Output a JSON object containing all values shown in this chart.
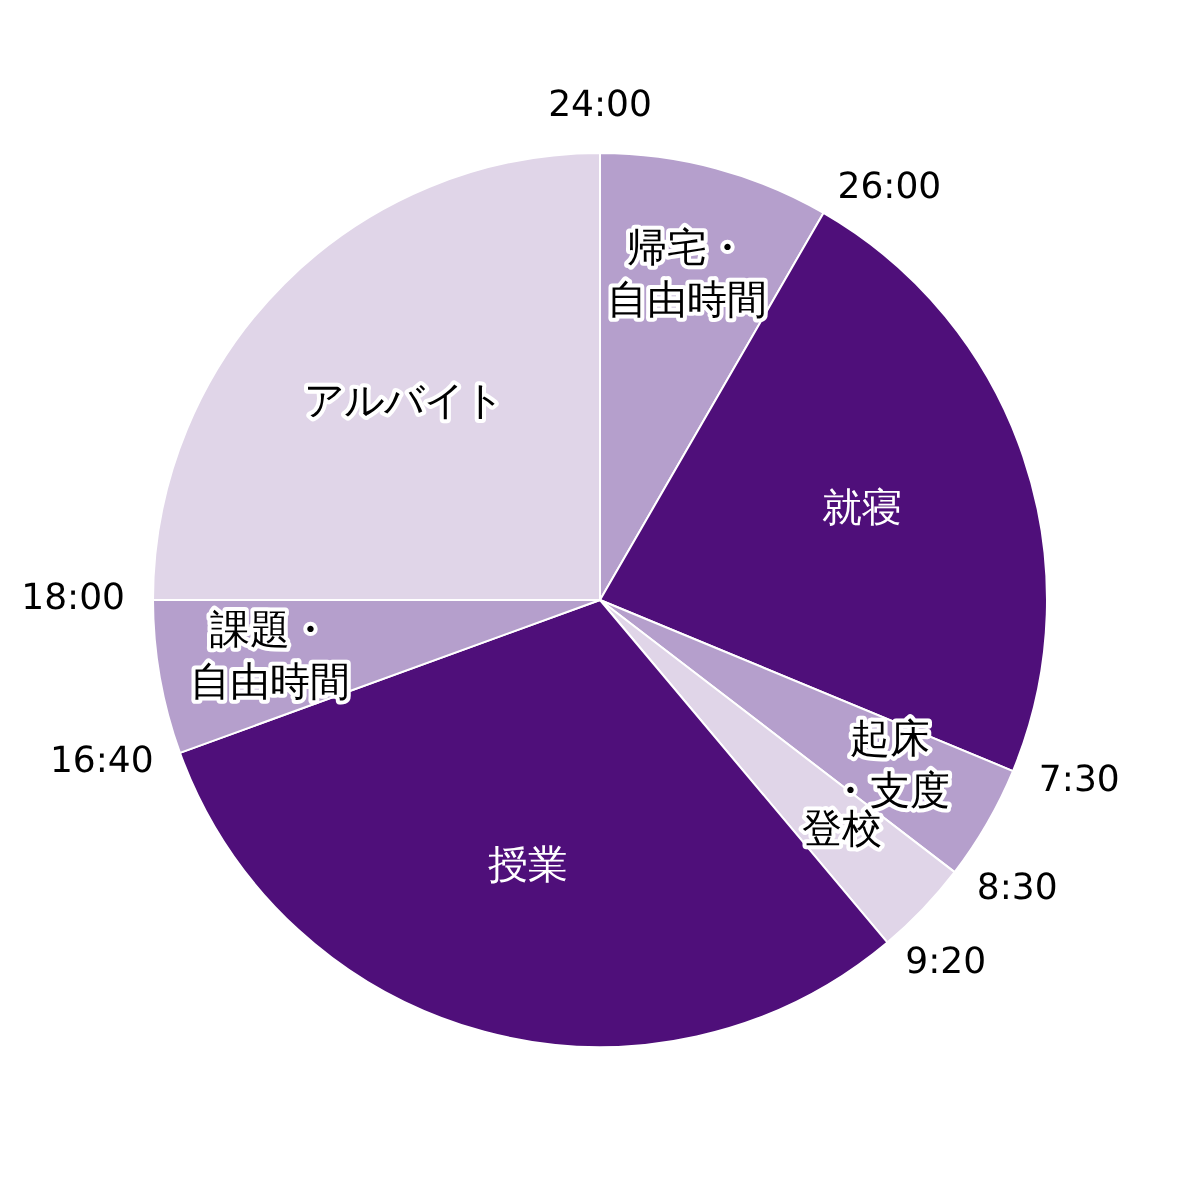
{
  "chart_data": {
    "type": "pie",
    "categories": [
      "帰宅・自由時間",
      "就寝",
      "起床・支度",
      "登校",
      "授業",
      "課題・自由時間",
      "アルバイト"
    ],
    "values": [
      8.333,
      22.917,
      4.167,
      3.472,
      30.556,
      5.555,
      25
    ],
    "colors": [
      "#b59fcc",
      "#4f0f7a",
      "#b59fcc",
      "#e0d5e8",
      "#4f0f7a",
      "#b59fcc",
      "#e0d5e8"
    ],
    "annotations": [
      "24:00",
      "26:00",
      "7:30",
      "8:30",
      "9:20",
      "16:40",
      "18:00"
    ],
    "legend": false
  }
}
